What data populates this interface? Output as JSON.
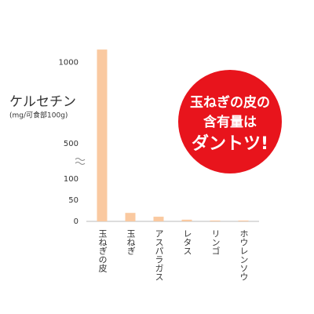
{
  "chart_data": {
    "type": "bar",
    "y_axis_title": "ケルセチン",
    "y_axis_subtitle": "(mg/可食部100g)",
    "annotation": [
      "玉ねぎの皮の",
      "含有量は",
      "ダントツ!"
    ],
    "categories": [
      "玉ねぎの皮",
      "玉ねぎ",
      "アスパラガス",
      "レタス",
      "リンゴ",
      "ホウレンソウ"
    ],
    "values": [
      1080,
      20,
      11,
      4,
      2,
      2
    ],
    "color": "#fac9a0",
    "ylim": [
      0,
      1100
    ],
    "axis_break": [
      100,
      500
    ],
    "yticks": [
      0,
      50,
      100,
      500,
      1000
    ],
    "grid": false
  }
}
